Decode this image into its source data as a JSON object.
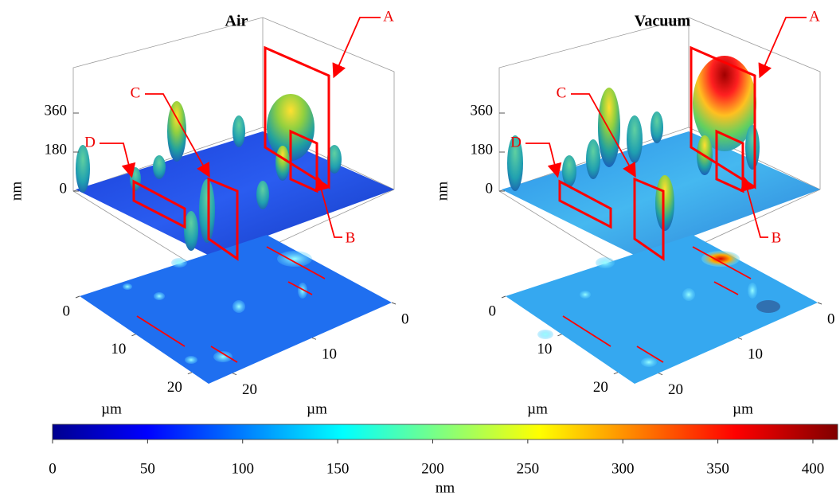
{
  "chart_data": [
    {
      "type": "surface3d",
      "title": "Air",
      "zlabel": "nm",
      "xlabel": "µm",
      "ylabel": "µm",
      "xlim": [
        0,
        23
      ],
      "ylim": [
        0,
        23
      ],
      "zlim": [
        0,
        540
      ],
      "xticks": [
        0,
        10,
        20
      ],
      "yticks": [
        0,
        10,
        20
      ],
      "zticks": [
        0,
        180,
        360
      ],
      "annotations": [
        "A",
        "B",
        "C",
        "D"
      ]
    },
    {
      "type": "surface3d",
      "title": "Vacuum",
      "zlabel": "nm",
      "xlabel": "µm",
      "ylabel": "µm",
      "xlim": [
        0,
        23
      ],
      "ylim": [
        0,
        23
      ],
      "zlim": [
        0,
        540
      ],
      "xticks": [
        0,
        10,
        20
      ],
      "yticks": [
        0,
        10,
        20
      ],
      "zticks": [
        0,
        180,
        360
      ],
      "annotations": [
        "A",
        "B",
        "C",
        "D"
      ]
    }
  ],
  "colorbar": {
    "type": "colorbar",
    "label": "nm",
    "clim": [
      0,
      413
    ],
    "ticks": [
      0,
      50,
      100,
      150,
      200,
      250,
      300,
      350,
      400
    ]
  }
}
